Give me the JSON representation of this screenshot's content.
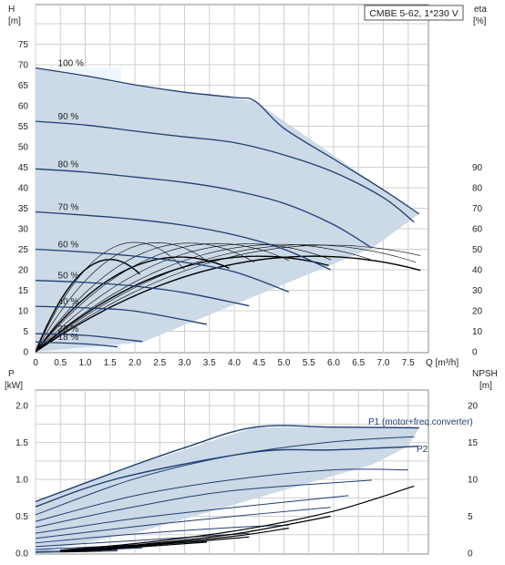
{
  "chart_data": [
    {
      "type": "line",
      "title": "CMBE 5-62, 1*230 V",
      "xlabel": "Q [m³/h]",
      "xlim": [
        0,
        8
      ],
      "x_ticks": [
        "0",
        "0.5",
        "1.0",
        "1.5",
        "2.0",
        "2.5",
        "3.0",
        "3.5",
        "4.0",
        "4.5",
        "5.0",
        "5.5",
        "6.0",
        "6.5",
        "7.0",
        "7.5"
      ],
      "ylabel_left": "H",
      "ylabel_left_unit": "[m]",
      "ylim_left": [
        0,
        80
      ],
      "y_ticks_left": [
        "0",
        "5",
        "10",
        "15",
        "20",
        "25",
        "30",
        "35",
        "40",
        "45",
        "50",
        "55",
        "60",
        "65",
        "70",
        "75"
      ],
      "ylabel_right": "eta",
      "ylabel_right_unit": "[%]",
      "ylim_right": [
        0,
        100
      ],
      "y_ticks_right": [
        "0",
        "10",
        "20",
        "30",
        "40",
        "50",
        "60",
        "70",
        "80",
        "90"
      ],
      "grid": true,
      "colors": {
        "head": "#1f3f73",
        "envelope": "#c9d7e6",
        "eta": "#000000",
        "grid": "#c8c8c8"
      },
      "envelope": {
        "x": [
          0,
          1.72,
          4.42,
          7.72,
          6.78,
          2.15,
          0
        ],
        "y": [
          69.2,
          65.4,
          61.1,
          33.6,
          25.3,
          2.3,
          0
        ]
      },
      "series": [
        {
          "name": "100 %",
          "x": [
            0,
            1,
            2,
            3,
            4,
            4.42,
            5,
            6,
            7,
            7.72
          ],
          "y": [
            69.2,
            67.3,
            65.1,
            63.3,
            62,
            61.1,
            54.5,
            47,
            39.5,
            33.6
          ]
        },
        {
          "name": "90 %",
          "x": [
            0,
            1,
            2,
            3,
            4,
            5,
            6,
            7,
            7.62
          ],
          "y": [
            56.2,
            55.3,
            53.8,
            52.4,
            51,
            48,
            43.8,
            37.6,
            31.6
          ]
        },
        {
          "name": "80 %",
          "x": [
            0,
            1,
            2,
            3,
            4,
            5,
            6,
            6.77
          ],
          "y": [
            44.6,
            43.8,
            42.6,
            41.3,
            39.3,
            36.2,
            31,
            25.3
          ]
        },
        {
          "name": "70 %",
          "x": [
            0,
            1,
            2,
            3,
            4,
            5,
            5.94
          ],
          "y": [
            34.1,
            33.3,
            32.3,
            30.8,
            28.5,
            25,
            20
          ]
        },
        {
          "name": "60 %",
          "x": [
            0,
            1,
            2,
            3,
            4,
            5.1
          ],
          "y": [
            25,
            24.3,
            23.3,
            21.8,
            19.5,
            14.6
          ]
        },
        {
          "name": "50 %",
          "x": [
            0,
            1,
            2,
            3,
            4.3
          ],
          "y": [
            17.4,
            16.9,
            16,
            14.4,
            11.2
          ]
        },
        {
          "name": "40 %",
          "x": [
            0,
            1,
            2,
            3.45
          ],
          "y": [
            11.1,
            10.7,
            9.9,
            6.7
          ]
        },
        {
          "name": "25 %",
          "x": [
            0,
            1,
            2.15
          ],
          "y": [
            4.4,
            4.0,
            2.5
          ]
        },
        {
          "name": "18 %",
          "x": [
            0,
            1,
            1.65
          ],
          "y": [
            2.4,
            1.9,
            1.2
          ]
        }
      ],
      "eta_peaks": [
        {
          "peak_x": 2.0,
          "peak_y": 26.7,
          "end_x": 3.0
        },
        {
          "peak_x": 2.45,
          "peak_y": 26.6,
          "end_x": 3.5
        },
        {
          "peak_x": 3.1,
          "peak_y": 26.5,
          "end_x": 4.4
        },
        {
          "peak_x": 3.65,
          "peak_y": 26.4,
          "end_x": 5.1
        },
        {
          "peak_x": 4.3,
          "peak_y": 26.3,
          "end_x": 5.95
        },
        {
          "peak_x": 4.9,
          "peak_y": 26.2,
          "end_x": 6.75
        },
        {
          "peak_x": 5.45,
          "peak_y": 26.1,
          "end_x": 7.65
        },
        {
          "peak_x": 5.9,
          "peak_y": 26.0,
          "end_x": 7.75
        },
        {
          "peak_x": 1.5,
          "peak_y": 22.5,
          "end_x": 2.1
        },
        {
          "peak_x": 2.9,
          "peak_y": 23.1,
          "end_x": 3.9
        },
        {
          "peak_x": 4.5,
          "peak_y": 23.3,
          "end_x": 5.9
        },
        {
          "peak_x": 5.6,
          "peak_y": 23.3,
          "end_x": 7.75
        }
      ]
    },
    {
      "type": "line",
      "xlim": [
        0,
        8
      ],
      "ylabel_left": "P",
      "ylabel_left_unit": "[kW]",
      "ylim_left": [
        0,
        2.25
      ],
      "y_ticks_left": [
        "0.0",
        "0.5",
        "1.0",
        "1.5",
        "2.0"
      ],
      "ylabel_right": "NPSH",
      "ylabel_right_unit": "[m]",
      "ylim_right": [
        0,
        22.5
      ],
      "y_ticks_right": [
        "0",
        "5",
        "10",
        "15",
        "20"
      ],
      "grid": true,
      "series_labels": {
        "p1": "P1 (motor+freq.converter)",
        "p2": "P2"
      },
      "envelope": {
        "x": [
          0,
          1.72,
          4.42,
          7.72,
          7.5,
          6.78,
          2.15,
          0
        ],
        "y": [
          0.7,
          1.13,
          1.71,
          1.7,
          1.45,
          1.2,
          0.3,
          0.0
        ]
      },
      "series": [
        {
          "name": "P1 (motor+freq.converter)",
          "x": [
            0,
            1.72,
            3,
            4.42,
            6,
            7.72
          ],
          "y": [
            0.7,
            1.13,
            1.43,
            1.71,
            1.71,
            1.7
          ]
        },
        {
          "name": "P2",
          "x": [
            0,
            1.7,
            4.4,
            6,
            7.7
          ],
          "y": [
            0.63,
            1.02,
            1.37,
            1.4,
            1.45
          ]
        },
        {
          "name": "",
          "x": [
            0,
            2,
            4,
            6,
            7.62
          ],
          "y": [
            0.52,
            1.01,
            1.33,
            1.51,
            1.58
          ]
        },
        {
          "name": "",
          "x": [
            0,
            2,
            4,
            6,
            7.5
          ],
          "y": [
            0.43,
            0.78,
            1.0,
            1.13,
            1.13
          ]
        },
        {
          "name": "",
          "x": [
            0,
            2,
            4,
            6.77
          ],
          "y": [
            0.35,
            0.63,
            0.85,
            0.99
          ]
        },
        {
          "name": "",
          "x": [
            0,
            2,
            4,
            6.3
          ],
          "y": [
            0.27,
            0.47,
            0.62,
            0.78
          ]
        },
        {
          "name": "",
          "x": [
            0,
            2,
            4,
            5.94
          ],
          "y": [
            0.2,
            0.36,
            0.5,
            0.62
          ]
        },
        {
          "name": "",
          "x": [
            0,
            2,
            4,
            5.1
          ],
          "y": [
            0.14,
            0.26,
            0.35,
            0.38
          ]
        },
        {
          "name": "",
          "x": [
            0,
            2,
            4.3
          ],
          "y": [
            0.09,
            0.17,
            0.27
          ]
        },
        {
          "name": "",
          "x": [
            0,
            2,
            3.45
          ],
          "y": [
            0.05,
            0.11,
            0.16
          ]
        },
        {
          "name": "",
          "x": [
            0,
            1,
            2.15
          ],
          "y": [
            0.02,
            0.04,
            0.07
          ]
        },
        {
          "name": "",
          "x": [
            0,
            1,
            1.65
          ],
          "y": [
            0.01,
            0.02,
            0.03
          ]
        }
      ],
      "npsh": [
        {
          "x": [
            0.5,
            2,
            4,
            6,
            7.62
          ],
          "y": [
            0.4,
            1.3,
            3.0,
            5.7,
            9.1
          ]
        },
        {
          "x": [
            0.5,
            2,
            4,
            5.94
          ],
          "y": [
            0.3,
            1.1,
            2.6,
            5.0
          ]
        },
        {
          "x": [
            0.5,
            2,
            4,
            5.1
          ],
          "y": [
            0.3,
            1.0,
            2.3,
            3.4
          ]
        },
        {
          "x": [
            0.5,
            2,
            4.3
          ],
          "y": [
            0.3,
            0.9,
            2.2
          ]
        },
        {
          "x": [
            0.5,
            2,
            3.45
          ],
          "y": [
            0.2,
            0.8,
            1.5
          ]
        },
        {
          "x": [
            0.5,
            1.5,
            2.15
          ],
          "y": [
            0.2,
            0.6,
            0.9
          ]
        },
        {
          "x": [
            0.5,
            1.0,
            1.65
          ],
          "y": [
            0.2,
            0.3,
            0.5
          ]
        }
      ]
    }
  ]
}
